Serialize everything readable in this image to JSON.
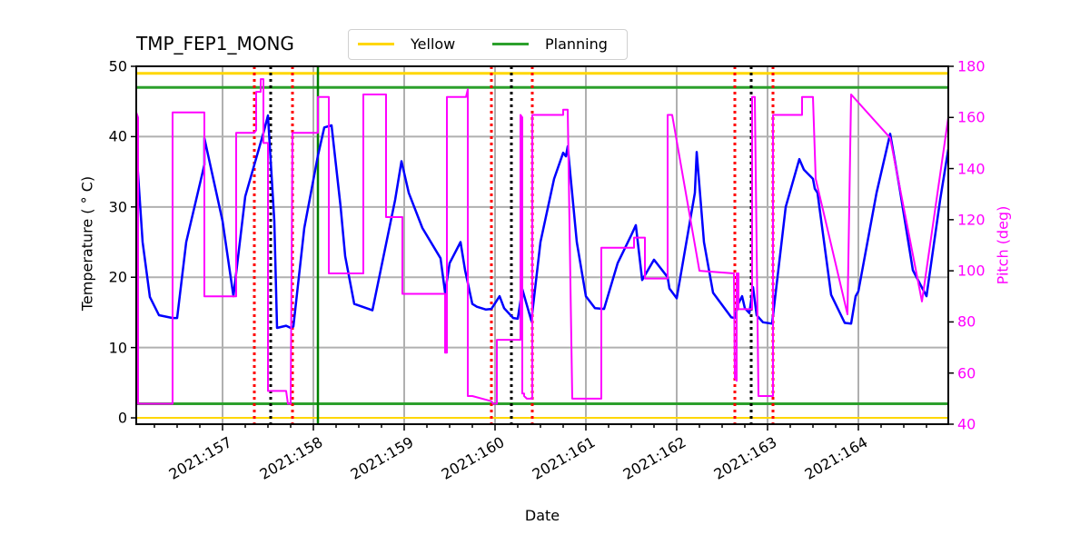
{
  "chart_data": {
    "type": "line",
    "title": "TMP_FEP1_MONG",
    "xlabel": "Date",
    "ylabel": "Temperature ($^\\circ$C)",
    "ylabel_display": "Temperature ( ° C)",
    "ylabel_right": "Pitch (deg)",
    "xlim": [
      156.05,
      164.99
    ],
    "ylim": [
      -0.9,
      50
    ],
    "ylim_right": [
      40,
      180
    ],
    "grid": true,
    "legend_position": "upper center (above axes)",
    "x_ticks": [
      "2021:157",
      "2021:158",
      "2021:159",
      "2021:160",
      "2021:161",
      "2021:162",
      "2021:163",
      "2021:164"
    ],
    "y_ticks_left": [
      "0",
      "10",
      "20",
      "30",
      "40",
      "50"
    ],
    "y_ticks_right": [
      "40",
      "60",
      "80",
      "100",
      "120",
      "140",
      "160",
      "180"
    ],
    "legend": [
      {
        "label": "Yellow",
        "color": "#ffd700"
      },
      {
        "label": "Planning",
        "color": "#2ca02c"
      }
    ],
    "horizontal_lines": [
      {
        "name": "Yellow (high)",
        "y": 49,
        "color": "#ffd700"
      },
      {
        "name": "Planning (high)",
        "y": 47,
        "color": "#2ca02c"
      },
      {
        "name": "Planning (low)",
        "y": 2,
        "color": "#2ca02c"
      },
      {
        "name": "Yellow (low)",
        "y": 0,
        "color": "#ffd700"
      }
    ],
    "vertical_lines": [
      {
        "x": 157.35,
        "style": "dotted",
        "color": "#ff0000"
      },
      {
        "x": 157.53,
        "style": "dotted",
        "color": "#000000"
      },
      {
        "x": 157.77,
        "style": "dotted",
        "color": "#ff0000"
      },
      {
        "x": 158.05,
        "style": "solid",
        "color": "#008000"
      },
      {
        "x": 159.96,
        "style": "dotted",
        "color": "#ff0000"
      },
      {
        "x": 160.18,
        "style": "dotted",
        "color": "#000000"
      },
      {
        "x": 160.41,
        "style": "dotted",
        "color": "#ff0000"
      },
      {
        "x": 162.64,
        "style": "dotted",
        "color": "#ff0000"
      },
      {
        "x": 162.82,
        "style": "dotted",
        "color": "#000000"
      },
      {
        "x": 163.06,
        "style": "dotted",
        "color": "#ff0000"
      }
    ],
    "series": [
      {
        "name": "TMP_FEP1_MONG",
        "axis": "left",
        "color": "#0000ff",
        "x": [
          156.05,
          156.12,
          156.2,
          156.3,
          156.45,
          156.5,
          156.6,
          156.8,
          156.8,
          157.0,
          157.12,
          157.25,
          157.45,
          157.5,
          157.57,
          157.6,
          157.7,
          157.75,
          157.78,
          157.9,
          158.05,
          158.12,
          158.2,
          158.3,
          158.35,
          158.45,
          158.65,
          158.9,
          158.97,
          159.05,
          159.2,
          159.4,
          159.45,
          159.5,
          159.62,
          159.67,
          159.75,
          159.8,
          159.9,
          159.96,
          160.05,
          160.1,
          160.2,
          160.25,
          160.3,
          160.4,
          160.5,
          160.65,
          160.75,
          160.78,
          160.8,
          160.9,
          161.0,
          161.1,
          161.2,
          161.35,
          161.5,
          161.55,
          161.62,
          161.75,
          161.9,
          161.92,
          162.0,
          162.2,
          162.22,
          162.3,
          162.4,
          162.6,
          162.64,
          162.68,
          162.72,
          162.75,
          162.8,
          162.84,
          162.88,
          162.95,
          163.05,
          163.2,
          163.35,
          163.4,
          163.5,
          163.52,
          163.55,
          163.7,
          163.85,
          163.92,
          163.97,
          164.0,
          164.2,
          164.35,
          164.45,
          164.6,
          164.75,
          164.9,
          164.99
        ],
        "y": [
          38.5,
          25,
          17.2,
          14.6,
          14.2,
          14.2,
          25,
          36,
          39.8,
          28,
          17.3,
          31.5,
          40.5,
          43,
          28,
          12.8,
          13.1,
          12.8,
          13.0,
          27,
          37.3,
          41.3,
          41.6,
          30,
          23,
          16.2,
          15.3,
          31,
          36.5,
          32,
          27,
          22.7,
          17.8,
          22,
          25,
          21,
          16.2,
          15.8,
          15.4,
          15.5,
          17.3,
          15.6,
          14.2,
          14.1,
          18.3,
          13.8,
          25,
          34,
          37.7,
          37.2,
          38.6,
          25,
          17.3,
          15.6,
          15.5,
          22,
          26,
          27.4,
          19.6,
          22.5,
          20,
          18.4,
          17,
          32,
          37.8,
          25,
          17.8,
          14.3,
          14.2,
          16.3,
          17.3,
          15.6,
          14.9,
          18.6,
          14.6,
          13.6,
          13.4,
          30,
          36.8,
          35.3,
          34,
          32.6,
          32,
          17.5,
          13.5,
          13.4,
          17.3,
          18,
          32,
          40.4,
          33,
          21,
          17.3,
          31,
          38.2
        ]
      },
      {
        "name": "Pitch",
        "axis": "right",
        "color": "#ff00ff",
        "x": [
          156.05,
          156.07,
          156.07,
          156.45,
          156.45,
          156.8,
          156.8,
          157.15,
          157.15,
          157.35,
          157.37,
          157.37,
          157.42,
          157.42,
          157.45,
          157.45,
          157.5,
          157.5,
          157.7,
          157.72,
          157.75,
          157.77,
          157.77,
          158.05,
          158.05,
          158.17,
          158.17,
          158.55,
          158.55,
          158.8,
          158.8,
          158.98,
          158.98,
          159.02,
          159.02,
          159.45,
          159.45,
          159.47,
          159.47,
          159.5,
          159.5,
          159.68,
          159.7,
          159.7,
          159.75,
          159.75,
          159.96,
          159.98,
          160.02,
          160.02,
          160.28,
          160.28,
          160.3,
          160.3,
          160.32,
          160.32,
          160.35,
          160.4,
          160.41,
          160.41,
          160.75,
          160.75,
          160.8,
          160.8,
          160.85,
          160.85,
          161.17,
          161.17,
          161.53,
          161.53,
          161.65,
          161.65,
          161.9,
          161.9,
          161.95,
          161.95,
          162.25,
          162.25,
          162.63,
          162.64,
          162.66,
          162.66,
          162.68,
          162.68,
          162.83,
          162.83,
          162.86,
          162.86,
          162.9,
          162.9,
          163.04,
          163.06,
          163.06,
          163.38,
          163.38,
          163.5,
          163.5,
          163.53,
          163.53,
          163.88,
          163.88,
          163.92,
          163.92,
          164.35,
          164.35,
          164.7,
          164.7,
          164.99
        ],
        "y": [
          162,
          160,
          48,
          48,
          162,
          162,
          90,
          90,
          154,
          154,
          155,
          170,
          170,
          175,
          175,
          150,
          150,
          53,
          53,
          48,
          48,
          154,
          154,
          154,
          168,
          168,
          99,
          99,
          169,
          169,
          121,
          121,
          91,
          91,
          91,
          91,
          68,
          68,
          168,
          168,
          168,
          168,
          171,
          51,
          51,
          51,
          49,
          48,
          48,
          73,
          73,
          161,
          160,
          52,
          52,
          51,
          50,
          50,
          50,
          161,
          161,
          163,
          163,
          163,
          50,
          50,
          50,
          109,
          109,
          113,
          113,
          97,
          97,
          161,
          161,
          161,
          100,
          100,
          99,
          58,
          57,
          99,
          99,
          85,
          85,
          168,
          168,
          168,
          51,
          51,
          51,
          51,
          161,
          161,
          168,
          168,
          168,
          136,
          136,
          83,
          83,
          169,
          169,
          152,
          152,
          88,
          88,
          160
        ]
      }
    ]
  }
}
